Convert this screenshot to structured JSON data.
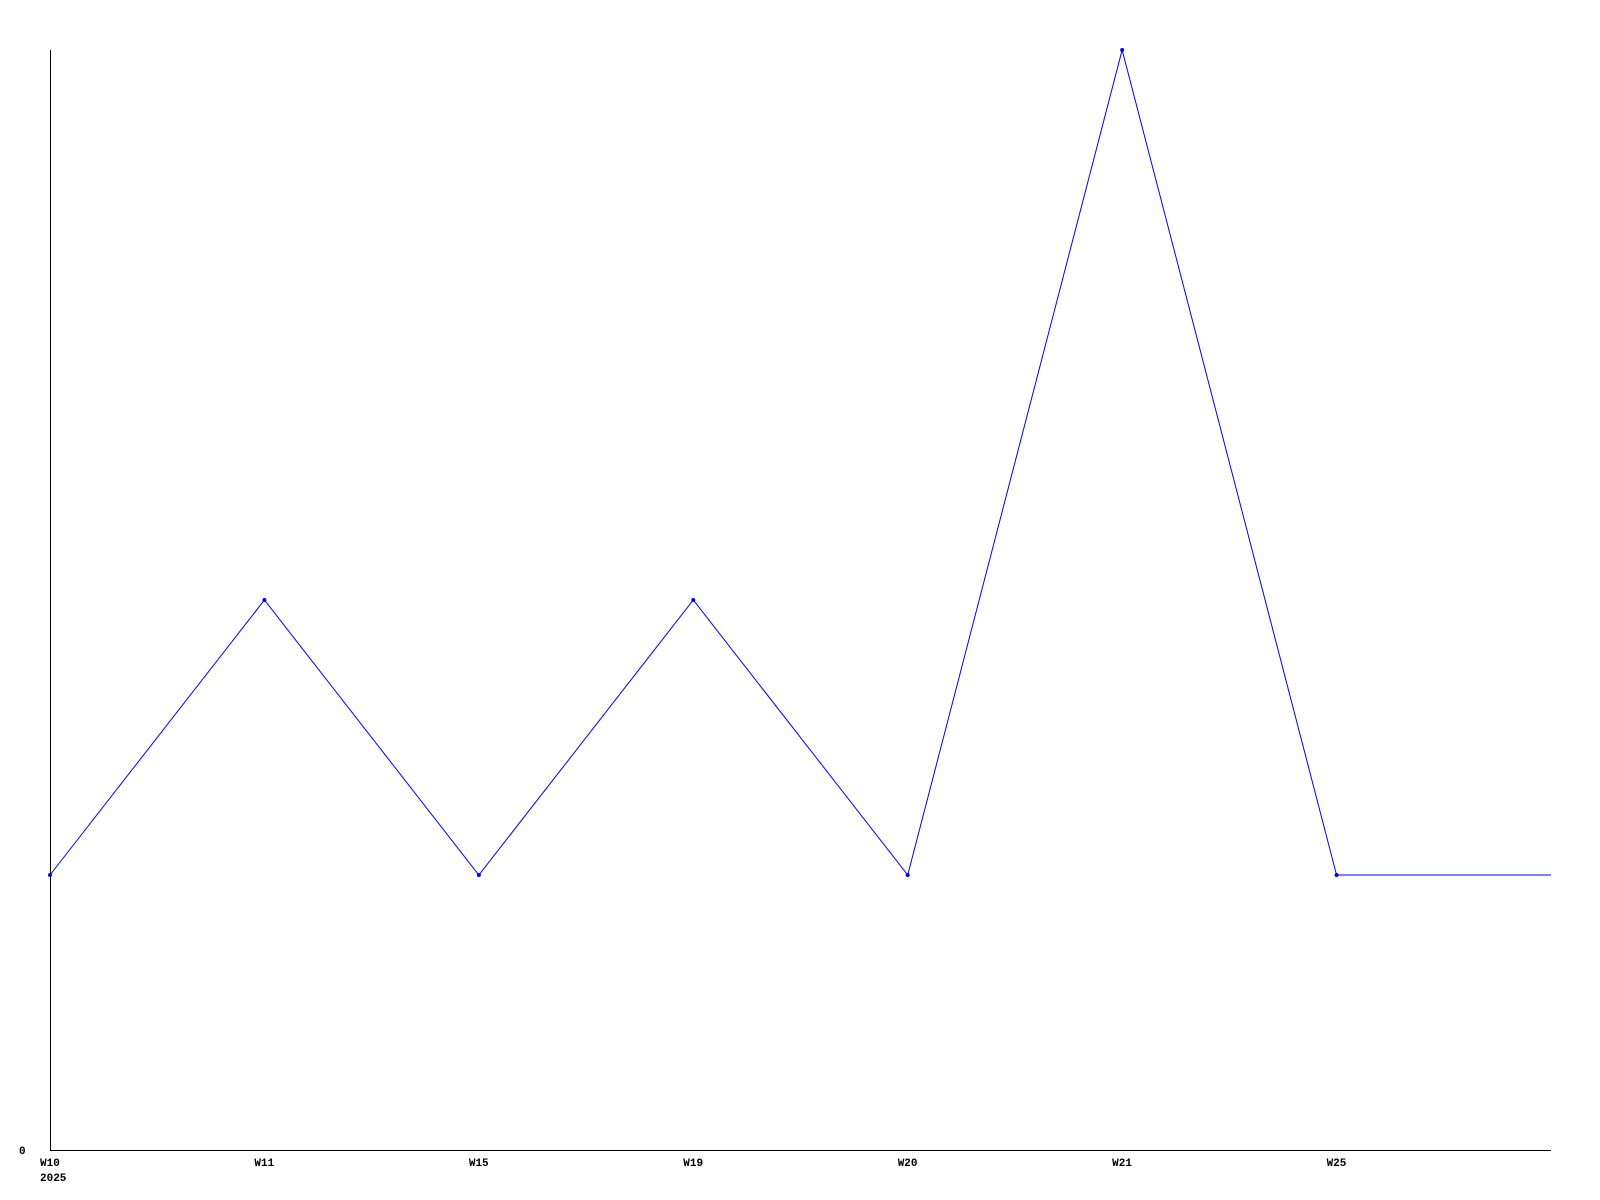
{
  "chart_data": {
    "type": "line",
    "title": "",
    "xlabel": "",
    "ylabel": "",
    "categories": [
      "W10",
      "W11",
      "W15",
      "W19",
      "W20",
      "W21",
      "W25",
      ""
    ],
    "year_label": "2025",
    "y_tick_labels": [
      "0"
    ],
    "ylim": [
      0,
      4
    ],
    "grid": false,
    "series": [
      {
        "values": [
          1,
          2,
          1,
          2,
          1,
          4,
          1,
          1
        ],
        "color": "#0000ff"
      }
    ]
  }
}
